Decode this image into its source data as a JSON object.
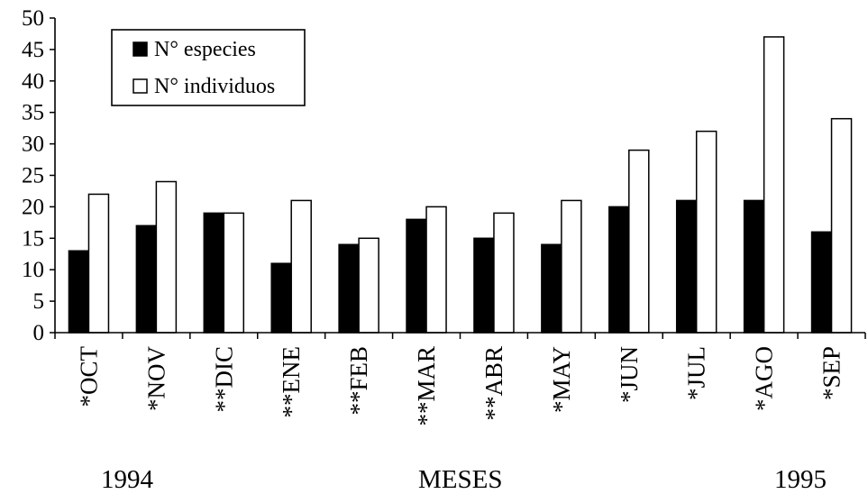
{
  "chart_data": {
    "type": "bar",
    "categories": [
      "*OCT",
      "*NOV",
      "**DIC",
      "**ENE",
      "**FEB",
      "**MAR",
      "**ABR",
      "*MAY",
      "*JUN",
      "*JUL",
      "*AGO",
      "*SEP"
    ],
    "series": [
      {
        "name": "N° especies",
        "color": "#000000",
        "values": [
          13,
          17,
          19,
          11,
          14,
          18,
          15,
          14,
          20,
          21,
          21,
          16
        ]
      },
      {
        "name": "N° individuos",
        "color": "#ffffff",
        "values": [
          22,
          24,
          19,
          21,
          15,
          20,
          19,
          21,
          29,
          32,
          47,
          34
        ]
      }
    ],
    "ylim": [
      0,
      50
    ],
    "yticks": [
      0,
      5,
      10,
      15,
      20,
      25,
      30,
      35,
      40,
      45,
      50
    ],
    "grid": false,
    "legend": "top-left",
    "xlabel": "MESES"
  },
  "labels": {
    "year_start": "1994",
    "xlabel": "MESES",
    "year_end": "1995"
  }
}
